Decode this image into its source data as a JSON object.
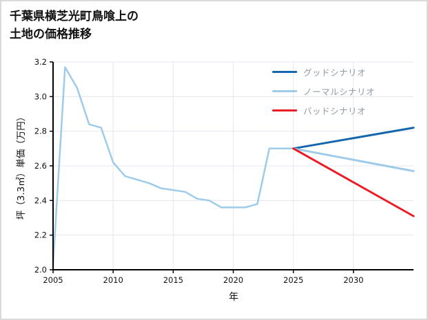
{
  "title": {
    "line1": "千葉県横芝光町鳥喰上の",
    "line2": "土地の価格推移"
  },
  "chart_data": {
    "type": "line",
    "title": "千葉県横芝光町鳥喰上の土地の価格推移",
    "xlabel": "年",
    "ylabel": "坪（3.3㎡）単価（万円）",
    "xlim": [
      2005,
      2035
    ],
    "ylim": [
      2.0,
      3.2
    ],
    "xticks": [
      2005,
      2010,
      2015,
      2020,
      2025,
      2030
    ],
    "yticks": [
      2.0,
      2.2,
      2.4,
      2.6,
      2.8,
      3.0,
      3.2
    ],
    "grid": true,
    "grid_color": "#e6e6f0",
    "axis_color": "#000000",
    "legend_position": "upper right",
    "series": [
      {
        "id": "history",
        "color": "#9ecbe9",
        "width": 2.5,
        "x": [
          2005,
          2006,
          2007,
          2008,
          2009,
          2010,
          2011,
          2012,
          2013,
          2014,
          2015,
          2016,
          2017,
          2018,
          2019,
          2020,
          2021,
          2022,
          2023,
          2024,
          2025
        ],
        "values": [
          2.03,
          3.17,
          3.05,
          2.84,
          2.82,
          2.62,
          2.54,
          2.52,
          2.5,
          2.47,
          2.46,
          2.45,
          2.41,
          2.4,
          2.36,
          2.36,
          2.36,
          2.38,
          2.7,
          2.7,
          2.7
        ]
      },
      {
        "id": "good-scenario",
        "color": "#1467ad",
        "width": 3,
        "x": [
          2025,
          2035
        ],
        "values": [
          2.7,
          2.82
        ]
      },
      {
        "id": "normal-scenario",
        "color": "#9ecbe9",
        "width": 3,
        "x": [
          2025,
          2035
        ],
        "values": [
          2.7,
          2.57
        ]
      },
      {
        "id": "bad-scenario",
        "color": "#eb1c24",
        "width": 3,
        "x": [
          2025,
          2035
        ],
        "values": [
          2.7,
          2.31
        ]
      }
    ],
    "legend": [
      {
        "label": "グッドシナリオ",
        "color": "#1467ad"
      },
      {
        "label": "ノーマルシナリオ",
        "color": "#9ecbe9"
      },
      {
        "label": "バッドシナリオ",
        "color": "#eb1c24"
      }
    ]
  }
}
